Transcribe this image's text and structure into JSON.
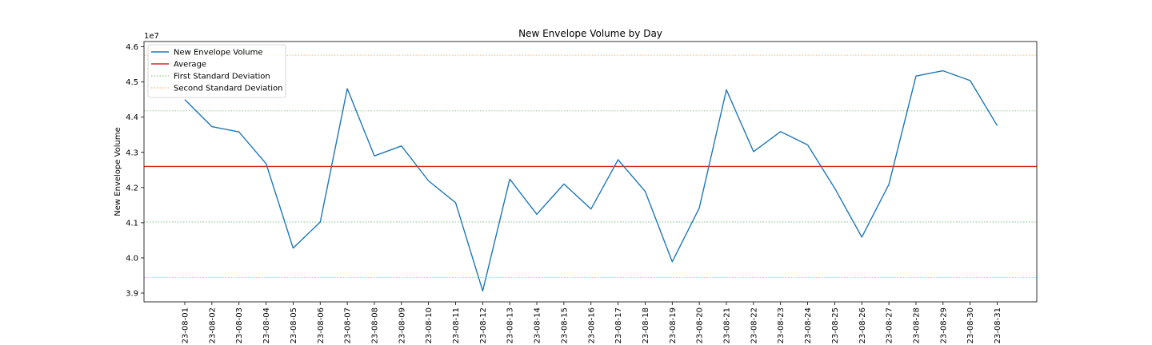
{
  "chart_data": {
    "type": "line",
    "title": "New Envelope Volume by Day",
    "xlabel": "",
    "ylabel": "New Envelope Volume",
    "y_offset_label": "1e7",
    "y_scale_factor": 10000000,
    "ylim": [
      38750000,
      46150000
    ],
    "yticks": [
      39000000,
      40000000,
      41000000,
      42000000,
      43000000,
      44000000,
      45000000,
      46000000
    ],
    "ytick_labels": [
      "3.9",
      "4.0",
      "4.1",
      "4.2",
      "4.3",
      "4.4",
      "4.5",
      "4.6"
    ],
    "categories": [
      "23-08-01",
      "23-08-02",
      "23-08-03",
      "23-08-04",
      "23-08-05",
      "23-08-06",
      "23-08-07",
      "23-08-08",
      "23-08-09",
      "23-08-10",
      "23-08-11",
      "23-08-12",
      "23-08-13",
      "23-08-14",
      "23-08-15",
      "23-08-16",
      "23-08-17",
      "23-08-18",
      "23-08-19",
      "23-08-20",
      "23-08-21",
      "23-08-22",
      "23-08-23",
      "23-08-24",
      "23-08-25",
      "23-08-26",
      "23-08-27",
      "23-08-28",
      "23-08-29",
      "23-08-30",
      "23-08-31"
    ],
    "series": [
      {
        "name": "New Envelope Volume",
        "color": "#1f77b4",
        "values": [
          44500000,
          43730000,
          43580000,
          42680000,
          40280000,
          41020000,
          44810000,
          42900000,
          43180000,
          42190000,
          41570000,
          39060000,
          42240000,
          41240000,
          42100000,
          41390000,
          42790000,
          41890000,
          39890000,
          41420000,
          44780000,
          43020000,
          43590000,
          43210000,
          41980000,
          40590000,
          42090000,
          45170000,
          45320000,
          45040000,
          43760000
        ]
      }
    ],
    "reference_lines": [
      {
        "name": "Average",
        "value": 42600000,
        "color": "#d62728",
        "style": "solid"
      },
      {
        "name": "First Standard Deviation",
        "values": [
          41020000,
          44180000
        ],
        "color": "#2ca02c",
        "style": "dotted"
      },
      {
        "name": "Second Standard Deviation",
        "values": [
          39440000,
          45760000
        ],
        "color": "#ff7f0e",
        "style": "dotted"
      }
    ],
    "legend": {
      "position": "top-left",
      "entries": [
        {
          "label": "New Envelope Volume",
          "color": "#1f77b4",
          "style": "solid"
        },
        {
          "label": "Average",
          "color": "#d62728",
          "style": "solid"
        },
        {
          "label": "First Standard Deviation",
          "color": "#2ca02c",
          "style": "dotted"
        },
        {
          "label": "Second Standard Deviation",
          "color": "#ff7f0e",
          "style": "dotted"
        }
      ]
    },
    "grid": false
  }
}
